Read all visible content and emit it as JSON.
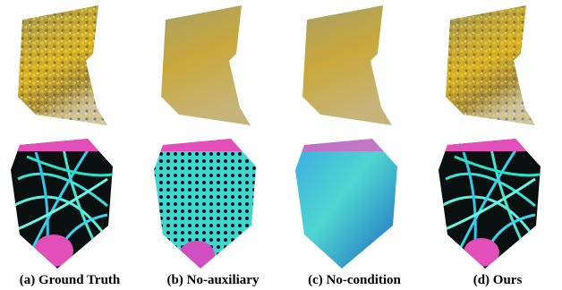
{
  "captions": [
    "(a) Ground Truth",
    "(b) No-auxiliary",
    "(c) No-condition",
    "(d) Ours"
  ]
}
